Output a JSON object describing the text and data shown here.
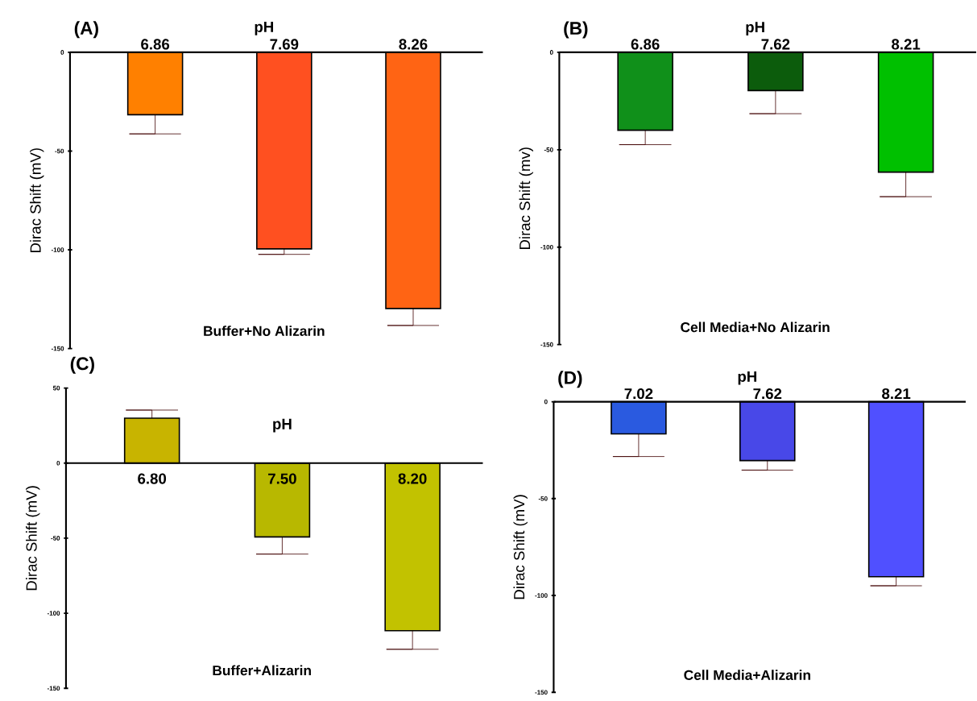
{
  "chart_data": [
    {
      "type": "bar",
      "title": "(A)",
      "xlabel": "pH",
      "ylabel": "Dirac Shift (mV)",
      "annotations": [
        "Buffer+No Alizarin"
      ],
      "categories": [
        "6.86",
        "7.69",
        "8.26"
      ],
      "values": [
        -31.6,
        -99.5,
        -129.7
      ],
      "colors": [
        "#ff8000",
        "#ff5020",
        "#ff6414"
      ],
      "errors": [
        [
          -41.3,
          -31.6
        ],
        [
          -102.3,
          -99.5
        ],
        [
          -138.3,
          -129.7
        ]
      ],
      "ylim": [
        -150,
        0
      ],
      "yticks": [
        -150,
        -100,
        -50,
        0
      ]
    },
    {
      "type": "bar",
      "title": "(B)",
      "xlabel": "pH",
      "ylabel": "Dirac Shift (mv)",
      "annotations": [
        "Cell Media+No Alizarin"
      ],
      "categories": [
        "6.86",
        "7.62",
        "8.21"
      ],
      "values": [
        -40,
        -19.6,
        -61.5
      ],
      "colors": [
        "#10901a",
        "#0c5c0c",
        "#00c000"
      ],
      "errors": [
        [
          -47.4,
          -40
        ],
        [
          -31.5,
          -19.6
        ],
        [
          -74.1,
          -61.5
        ]
      ],
      "ylim": [
        -150,
        0
      ],
      "yticks": [
        -150,
        -100,
        -50,
        0
      ]
    },
    {
      "type": "bar",
      "title": "(C)",
      "xlabel": "pH",
      "ylabel": "Dirac Shift (mV)",
      "annotations": [
        "Buffer+Alizarin"
      ],
      "categories": [
        "6.80",
        "7.50",
        "8.20"
      ],
      "values": [
        29.9,
        -49.2,
        -111.6
      ],
      "colors": [
        "#c8b400",
        "#b8b800",
        "#c2c200"
      ],
      "errors": [
        [
          29.9,
          35.3
        ],
        [
          -60.6,
          -49.2
        ],
        [
          -124,
          -111.6
        ]
      ],
      "ylim": [
        -150,
        50
      ],
      "yticks": [
        -150,
        -100,
        -50,
        0,
        50
      ]
    },
    {
      "type": "bar",
      "title": "(D)",
      "xlabel": "pH",
      "ylabel": "Dirac Shift (mV)",
      "annotations": [
        "Cell Media+Alizarin"
      ],
      "categories": [
        "7.02",
        "7.62",
        "8.21"
      ],
      "values": [
        -16.6,
        -30.4,
        -90.3
      ],
      "colors": [
        "#2a5ae0",
        "#4848e8",
        "#5050ff"
      ],
      "errors": [
        [
          -28.3,
          -16.6
        ],
        [
          -35.3,
          -30.4
        ],
        [
          -95,
          -90.3
        ]
      ],
      "ylim": [
        -150,
        0
      ],
      "yticks": [
        -150,
        -100,
        -50,
        0
      ]
    }
  ]
}
